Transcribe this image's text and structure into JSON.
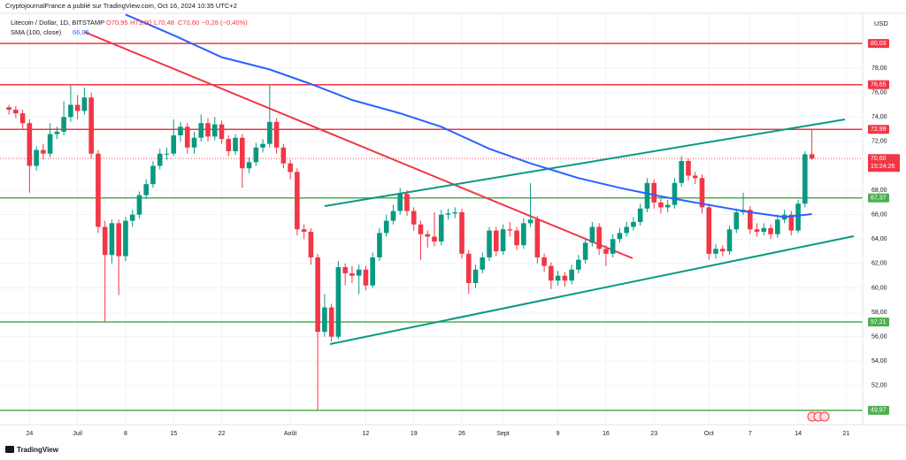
{
  "chart_data": {
    "type": "candlestick",
    "attribution": "CryptojournalFrance a publié sur TradingView.com, Oct 16, 2024 10:35 UTC+2",
    "symbol": "Litecoin / Dollar, 1D, BITSTAMP",
    "ohlc_legend": [
      "O70,95",
      "H73,00",
      "L70,48",
      "C70,60",
      "−0,28 (−0,40%)"
    ],
    "indicator": "SMA (100, close)",
    "indicator_value": "66,05",
    "currency": "USD",
    "brand": "TradingView",
    "up_color": "#089981",
    "down_color": "#f23645",
    "open": [
      74.8,
      74.6,
      74.3,
      73.5,
      70.0,
      71.3,
      71.0,
      72.6,
      72.8,
      74.0,
      75.0,
      74.5,
      75.6,
      71.0,
      65.0,
      62.7,
      65.3,
      62.6,
      65.5,
      66.0,
      67.6,
      68.5,
      70.0,
      71.0,
      71.0,
      72.5,
      73.2,
      71.5,
      72.3,
      73.5,
      72.4,
      73.4,
      72.2,
      71.2,
      72.3,
      69.8,
      70.3,
      71.5,
      71.8,
      73.6,
      71.5,
      70.2,
      69.5,
      64.8,
      64.6,
      62.5,
      56.4,
      58.4,
      56.0,
      61.7,
      61.2,
      61.0,
      61.5,
      60.2,
      62.5,
      64.5,
      65.5,
      66.3,
      67.7,
      66.3,
      65.2,
      64.4,
      64.2,
      63.8,
      66.0,
      66.1,
      66.2,
      62.8,
      60.4,
      61.5,
      62.5,
      64.7,
      63.0,
      64.8,
      64.7,
      63.5,
      65.3,
      65.6,
      62.5,
      61.8,
      60.6,
      61.0,
      60.6,
      61.5,
      62.3,
      63.7,
      65.0,
      63.2,
      62.8,
      64.0,
      64.5,
      65.0,
      65.4,
      66.5,
      68.6,
      67.0,
      66.6,
      66.8,
      68.6,
      70.4,
      69.2,
      69.0,
      66.6,
      62.8,
      63.2,
      63.0,
      64.8,
      66.2,
      66.4,
      64.8,
      64.6,
      64.9,
      64.4,
      65.6,
      66.0,
      64.7,
      66.9,
      70.95
    ],
    "high": [
      75.0,
      74.9,
      74.6,
      73.8,
      71.6,
      71.8,
      73.5,
      73.2,
      75.3,
      76.6,
      75.8,
      76.4,
      76.0,
      71.3,
      65.5,
      65.6,
      65.6,
      65.8,
      66.4,
      67.9,
      68.9,
      70.4,
      71.4,
      71.5,
      73.8,
      73.6,
      73.5,
      72.8,
      74.2,
      73.9,
      74.0,
      73.7,
      72.5,
      72.6,
      72.6,
      70.7,
      71.9,
      72.2,
      76.6,
      73.9,
      71.8,
      70.5,
      69.8,
      65.2,
      64.9,
      62.8,
      59.5,
      58.7,
      62.2,
      62.0,
      61.8,
      61.9,
      61.8,
      62.9,
      64.9,
      66.0,
      66.8,
      68.2,
      68.0,
      66.6,
      65.5,
      64.7,
      66.2,
      66.4,
      66.5,
      66.6,
      66.5,
      63.1,
      61.9,
      62.9,
      65.0,
      65.0,
      65.2,
      65.4,
      65.0,
      65.7,
      68.6,
      65.9,
      62.8,
      62.1,
      61.4,
      61.3,
      61.9,
      62.7,
      64.1,
      65.4,
      65.3,
      63.5,
      64.4,
      64.9,
      65.4,
      65.8,
      66.9,
      69.0,
      68.9,
      67.3,
      67.2,
      69.0,
      70.8,
      70.6,
      69.5,
      69.3,
      66.9,
      63.6,
      63.5,
      65.1,
      66.5,
      67.8,
      66.7,
      65.3,
      65.3,
      65.2,
      66.0,
      66.4,
      66.3,
      67.2,
      71.2,
      73.0
    ],
    "low": [
      74.2,
      73.9,
      73.0,
      67.8,
      69.6,
      70.5,
      70.7,
      72.2,
      72.5,
      73.6,
      73.8,
      74.2,
      70.6,
      64.5,
      57.2,
      62.0,
      59.4,
      62.2,
      65.0,
      65.7,
      67.3,
      68.2,
      69.7,
      70.5,
      70.8,
      72.0,
      71.0,
      71.0,
      72.0,
      72.0,
      72.1,
      71.8,
      70.8,
      70.9,
      68.2,
      69.4,
      70.0,
      71.1,
      71.5,
      71.0,
      69.8,
      68.9,
      64.3,
      64.0,
      61.9,
      50.0,
      56.0,
      55.6,
      55.8,
      60.2,
      60.4,
      59.5,
      59.8,
      60.0,
      62.2,
      64.2,
      65.2,
      66.0,
      65.9,
      64.7,
      62.3,
      63.3,
      63.4,
      63.5,
      65.6,
      65.7,
      62.4,
      59.5,
      60.0,
      61.2,
      62.2,
      62.6,
      62.7,
      64.2,
      63.1,
      63.2,
      65.0,
      62.0,
      61.3,
      59.9,
      60.2,
      60.1,
      60.3,
      61.2,
      62.0,
      63.4,
      62.7,
      61.8,
      62.5,
      63.7,
      64.2,
      64.7,
      65.1,
      66.2,
      66.5,
      66.1,
      66.2,
      66.5,
      68.3,
      68.8,
      68.5,
      66.1,
      62.3,
      62.4,
      62.6,
      62.7,
      64.5,
      66.0,
      64.4,
      64.2,
      64.3,
      64.0,
      64.1,
      65.3,
      64.3,
      64.5,
      66.6,
      70.48
    ],
    "close": [
      74.6,
      74.3,
      73.5,
      70.0,
      71.3,
      71.0,
      72.6,
      72.8,
      74.0,
      75.0,
      74.5,
      75.6,
      71.0,
      65.0,
      62.7,
      65.3,
      62.6,
      65.5,
      66.0,
      67.6,
      68.5,
      70.0,
      71.0,
      71.0,
      72.5,
      73.2,
      71.5,
      72.3,
      73.5,
      72.4,
      73.4,
      72.2,
      71.2,
      72.3,
      69.8,
      70.3,
      71.5,
      71.8,
      73.6,
      71.5,
      70.2,
      69.5,
      64.8,
      64.6,
      62.5,
      56.4,
      58.4,
      56.0,
      61.7,
      61.2,
      61.0,
      61.5,
      60.2,
      62.5,
      64.5,
      65.5,
      66.3,
      67.7,
      66.3,
      65.2,
      64.4,
      64.2,
      63.8,
      66.0,
      66.1,
      66.2,
      62.8,
      60.4,
      61.5,
      62.5,
      64.7,
      63.0,
      64.8,
      64.7,
      63.5,
      65.3,
      65.6,
      62.5,
      61.8,
      60.6,
      61.0,
      60.6,
      61.5,
      62.3,
      63.7,
      65.0,
      63.2,
      62.8,
      64.0,
      64.5,
      65.0,
      65.4,
      66.5,
      68.6,
      67.0,
      66.6,
      66.8,
      68.6,
      70.4,
      69.2,
      69.0,
      66.6,
      62.8,
      63.2,
      63.0,
      64.8,
      66.2,
      66.4,
      64.8,
      64.6,
      64.9,
      64.4,
      65.6,
      66.0,
      64.7,
      66.9,
      70.95,
      70.6
    ],
    "sma": {
      "color": "#2962ff",
      "x": [
        17,
        24,
        31,
        38,
        44,
        50,
        57,
        63,
        70,
        76,
        83,
        89,
        95,
        101,
        108,
        113,
        117
      ],
      "values": [
        82.4,
        80.7,
        78.9,
        77.9,
        76.7,
        75.4,
        74.3,
        73.2,
        71.4,
        70.2,
        69.0,
        68.2,
        67.5,
        66.9,
        66.2,
        65.8,
        66.05
      ]
    },
    "levels": [
      {
        "value": 80.03,
        "label": "80,03",
        "color": "#f23645"
      },
      {
        "value": 76.65,
        "label": "76,65",
        "color": "#f23645"
      },
      {
        "value": 72.99,
        "label": "72,99",
        "color": "#f23645"
      },
      {
        "value": 67.37,
        "label": "67,37",
        "color": "#4caf50"
      },
      {
        "value": 57.21,
        "label": "57,21",
        "color": "#4caf50"
      },
      {
        "value": 49.97,
        "label": "49,97",
        "color": "#4caf50"
      }
    ],
    "last_price": {
      "value": 70.6,
      "label": "70,60",
      "countdown": "15:24:26"
    },
    "xlim": [
      -1.3,
      124.4
    ],
    "ylim": [
      48.8,
      82.5
    ],
    "xticks": [
      {
        "value": 3,
        "label": "24"
      },
      {
        "value": 10,
        "label": "Juil"
      },
      {
        "value": 17,
        "label": "8"
      },
      {
        "value": 24,
        "label": "15"
      },
      {
        "value": 31,
        "label": "22"
      },
      {
        "value": 41,
        "label": "Août"
      },
      {
        "value": 52,
        "label": "12"
      },
      {
        "value": 59,
        "label": "19"
      },
      {
        "value": 66,
        "label": "26"
      },
      {
        "value": 72,
        "label": "Sept"
      },
      {
        "value": 80,
        "label": "9"
      },
      {
        "value": 87,
        "label": "16"
      },
      {
        "value": 94,
        "label": "23"
      },
      {
        "value": 102,
        "label": "Oct"
      },
      {
        "value": 108,
        "label": "7"
      },
      {
        "value": 115,
        "label": "14"
      },
      {
        "value": 122,
        "label": "21"
      }
    ],
    "yticks": [
      {
        "value": 52,
        "label": "52,00"
      },
      {
        "value": 54,
        "label": "54,00"
      },
      {
        "value": 56,
        "label": "56,00"
      },
      {
        "value": 58,
        "label": "58,00"
      },
      {
        "value": 60,
        "label": "60,00"
      },
      {
        "value": 62,
        "label": "62,00"
      },
      {
        "value": 64,
        "label": "64,00"
      },
      {
        "value": 66,
        "label": "66,00"
      },
      {
        "value": 68,
        "label": "68,00"
      },
      {
        "value": 72,
        "label": "72,00"
      },
      {
        "value": 74,
        "label": "74,00"
      },
      {
        "value": 76,
        "label": "76,00"
      },
      {
        "value": 78,
        "label": "78,00"
      }
    ],
    "grid": true
  }
}
